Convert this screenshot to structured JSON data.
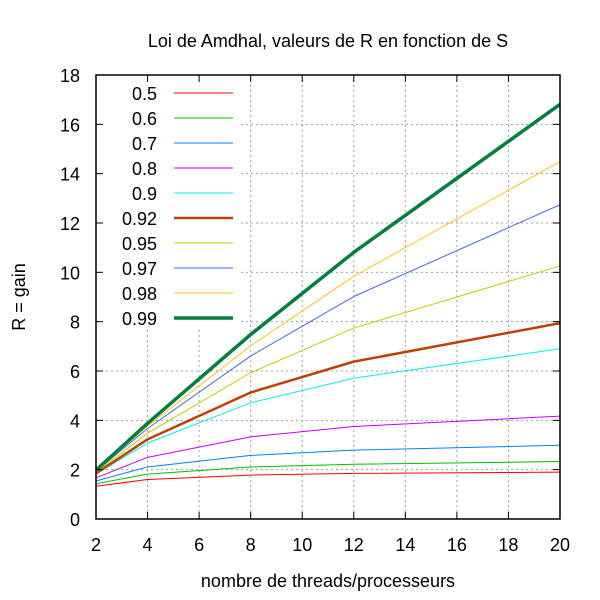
{
  "chart_data": {
    "type": "line",
    "title": "Loi de Amdhal, valeurs de R en fonction de S",
    "xlabel": "nombre de threads/processeurs",
    "ylabel": "R = gain",
    "xlim": [
      2,
      20
    ],
    "ylim": [
      0,
      18
    ],
    "xticks": [
      2,
      4,
      6,
      8,
      10,
      12,
      14,
      16,
      18,
      20
    ],
    "yticks": [
      0,
      2,
      4,
      6,
      8,
      10,
      12,
      14,
      16,
      18
    ],
    "grid": true,
    "legend_position": "top-left",
    "x": [
      2,
      4,
      8,
      12,
      20
    ],
    "series": [
      {
        "name": "0.5",
        "color": "#ff0000",
        "values": [
          1.33,
          1.6,
          1.78,
          1.85,
          1.9
        ]
      },
      {
        "name": "0.6",
        "color": "#00c000",
        "values": [
          1.43,
          1.82,
          2.11,
          2.22,
          2.33
        ]
      },
      {
        "name": "0.7",
        "color": "#0080ff",
        "values": [
          1.54,
          2.11,
          2.58,
          2.79,
          2.99
        ]
      },
      {
        "name": "0.8",
        "color": "#c000ff",
        "values": [
          1.67,
          2.5,
          3.33,
          3.75,
          4.17
        ]
      },
      {
        "name": "0.9",
        "color": "#00eeee",
        "values": [
          1.82,
          3.08,
          4.71,
          5.71,
          6.9
        ]
      },
      {
        "name": "0.92",
        "color": "#c04000",
        "values": [
          1.85,
          3.23,
          5.13,
          6.38,
          7.94
        ],
        "bold": true
      },
      {
        "name": "0.95",
        "color": "#c8c800",
        "values": [
          1.9,
          3.48,
          5.93,
          7.74,
          10.26
        ]
      },
      {
        "name": "0.97",
        "color": "#4169e1",
        "values": [
          1.94,
          3.67,
          6.61,
          9.02,
          12.74
        ]
      },
      {
        "name": "0.98",
        "color": "#ffc020",
        "values": [
          1.96,
          3.77,
          7.02,
          9.84,
          14.49
        ]
      },
      {
        "name": "0.99",
        "color": "#008040",
        "values": [
          1.98,
          3.88,
          7.48,
          10.81,
          16.81
        ],
        "bold": true
      }
    ]
  }
}
